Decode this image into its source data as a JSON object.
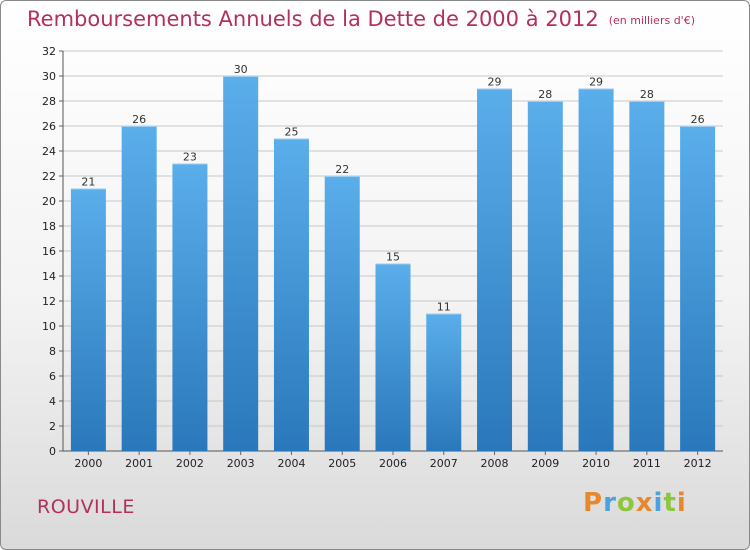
{
  "header": {
    "title": "Remboursements Annuels de la Dette de 2000 à 2012",
    "unit": "(en milliers d'€)"
  },
  "footer": {
    "city": "ROUVILLE",
    "logo": "Proxiti",
    "logo_colors": [
      "#e8872b",
      "#4aa3df",
      "#8dc63f",
      "#e8872b",
      "#4aa3df",
      "#8dc63f",
      "#e8872b"
    ]
  },
  "colors": {
    "title": "#b3305a",
    "bar_top": "#5aaeea",
    "bar_bottom": "#2a78bb",
    "grid": "#c8c8c8"
  },
  "chart_data": {
    "type": "bar",
    "title": "Remboursements Annuels de la Dette de 2000 à 2012",
    "xlabel": "",
    "ylabel": "",
    "categories": [
      "2000",
      "2001",
      "2002",
      "2003",
      "2004",
      "2005",
      "2006",
      "2007",
      "2008",
      "2009",
      "2010",
      "2011",
      "2012"
    ],
    "values": [
      21,
      26,
      23,
      30,
      25,
      22,
      15,
      11,
      29,
      28,
      29,
      28,
      26
    ],
    "ylim": [
      0,
      32
    ],
    "yticks": [
      0,
      2,
      4,
      6,
      8,
      10,
      12,
      14,
      16,
      18,
      20,
      22,
      24,
      26,
      28,
      30,
      32
    ],
    "grid": true
  }
}
